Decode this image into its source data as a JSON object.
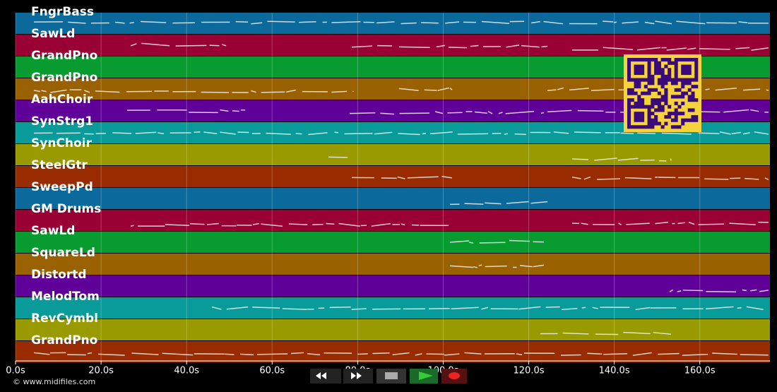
{
  "tracks": [
    {
      "name": "FngrBass",
      "color": "#0b699b"
    },
    {
      "name": "SawLd",
      "color": "#990033"
    },
    {
      "name": "GrandPno",
      "color": "#079b30"
    },
    {
      "name": "GrandPno",
      "color": "#9a6100"
    },
    {
      "name": "AahChoir",
      "color": "#5f0099"
    },
    {
      "name": "SynStrg1",
      "color": "#099a9a"
    },
    {
      "name": "SynChoir",
      "color": "#999a00"
    },
    {
      "name": "SteelGtr",
      "color": "#992b00"
    },
    {
      "name": "SweepPd",
      "color": "#0b699b"
    },
    {
      "name": "GM Drums",
      "color": "#990033"
    },
    {
      "name": "SawLd",
      "color": "#079b30"
    },
    {
      "name": "SquareLd",
      "color": "#9a6100"
    },
    {
      "name": "Distortd",
      "color": "#5f0099"
    },
    {
      "name": "MelodTom",
      "color": "#099a9a"
    },
    {
      "name": "RevCymbl",
      "color": "#999a00"
    },
    {
      "name": "GrandPno",
      "color": "#992b00"
    }
  ],
  "timeline": {
    "xlim": [
      0,
      176.4
    ],
    "ticks": [
      {
        "value": 0,
        "label": "0.0s"
      },
      {
        "value": 20,
        "label": "20.0s"
      },
      {
        "value": 40,
        "label": "40.0s"
      },
      {
        "value": 60,
        "label": "60.0s"
      },
      {
        "value": 80,
        "label": "80.0s"
      },
      {
        "value": 100,
        "label": "100.0s"
      },
      {
        "value": 120,
        "label": "120.0s"
      },
      {
        "value": 140,
        "label": "140.0s"
      },
      {
        "value": 160,
        "label": "160.0s"
      }
    ]
  },
  "footer": "© www.midifiles.com"
}
